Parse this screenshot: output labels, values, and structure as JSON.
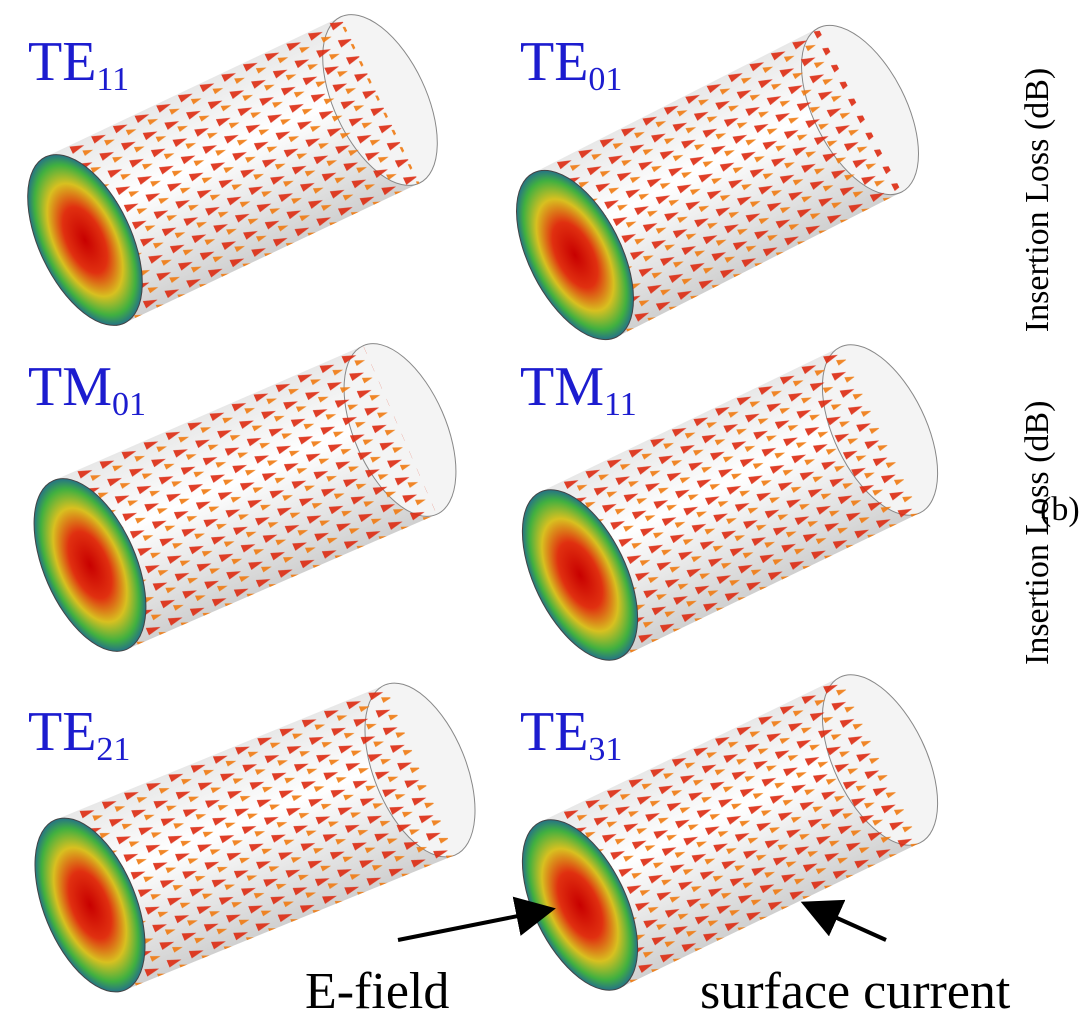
{
  "panels": [
    {
      "mode": "TE",
      "index": "11"
    },
    {
      "mode": "TE",
      "index": "01"
    },
    {
      "mode": "TM",
      "index": "01"
    },
    {
      "mode": "TM",
      "index": "11"
    },
    {
      "mode": "TE",
      "index": "21"
    },
    {
      "mode": "TE",
      "index": "31"
    }
  ],
  "annotations": {
    "e_field": "E-field",
    "surface_current": "surface current"
  },
  "side": {
    "y_label_a": "Insertion Loss (dB)",
    "panel_b": "(b)",
    "y_label_b": "Insertion Loss (dB)"
  }
}
